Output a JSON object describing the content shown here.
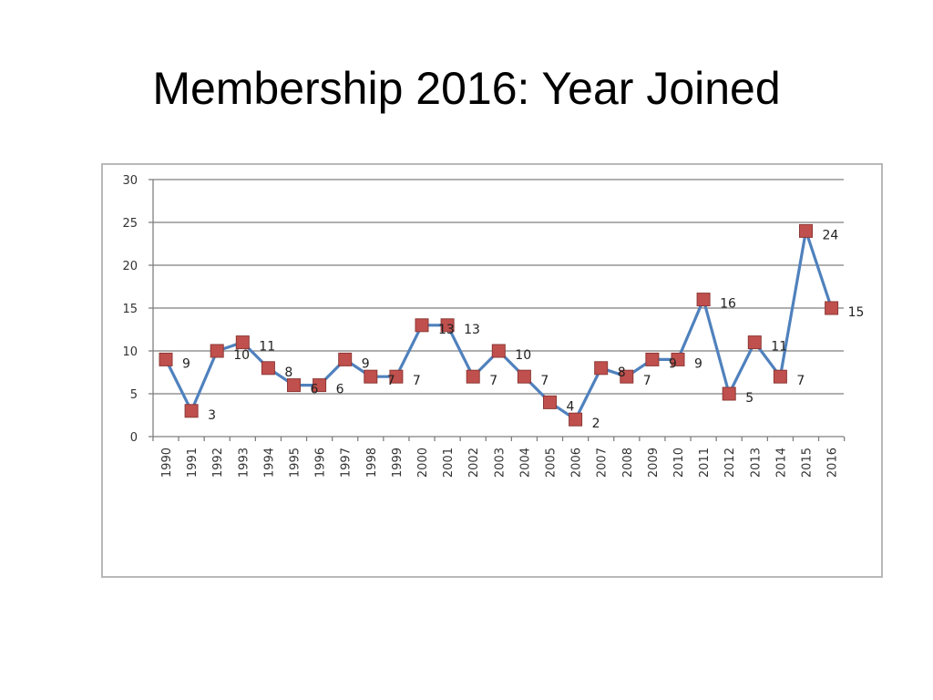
{
  "slide": {
    "title": "Membership 2016: Year Joined"
  },
  "chart_data": {
    "type": "line",
    "title": "",
    "xlabel": "",
    "ylabel": "",
    "x": [
      "1990",
      "1991",
      "1992",
      "1993",
      "1994",
      "1995",
      "1996",
      "1997",
      "1998",
      "1999",
      "2000",
      "2001",
      "2002",
      "2003",
      "2004",
      "2005",
      "2006",
      "2007",
      "2008",
      "2009",
      "2010",
      "2011",
      "2012",
      "2013",
      "2014",
      "2015",
      "2016"
    ],
    "series": [
      {
        "values": [
          9,
          3,
          10,
          11,
          8,
          6,
          6,
          9,
          7,
          7,
          13,
          13,
          7,
          10,
          7,
          4,
          2,
          8,
          7,
          9,
          9,
          16,
          5,
          11,
          7,
          24,
          15
        ]
      }
    ],
    "ylim": [
      0,
      30
    ],
    "yticks": [
      0,
      5,
      10,
      15,
      20,
      25,
      30
    ],
    "grid": true,
    "legend": "none",
    "data_labels": true,
    "colors": {
      "line": "#4f81bd",
      "marker_fill": "#c0504d",
      "marker_stroke": "#8c3836",
      "grid": "#7f7f7f"
    }
  }
}
